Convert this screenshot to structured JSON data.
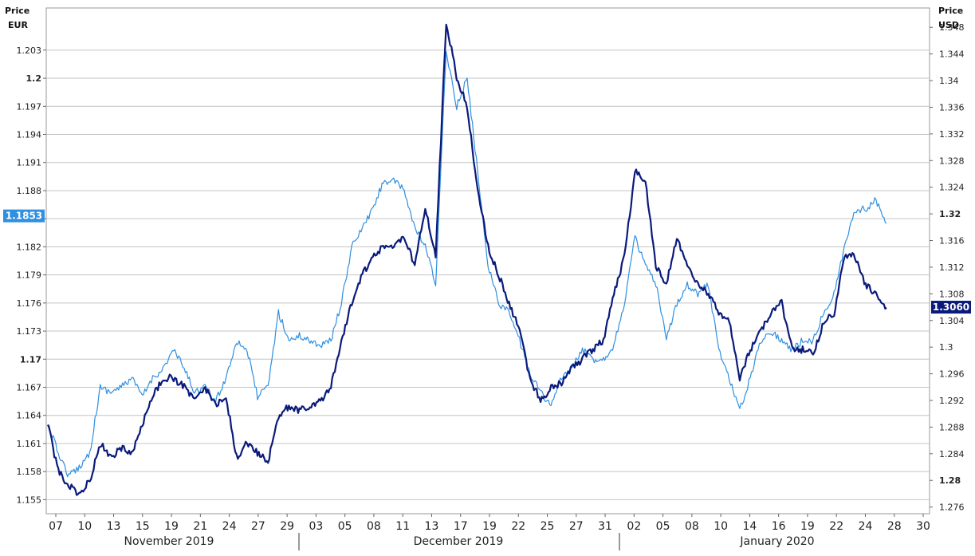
{
  "chart_data": {
    "type": "line",
    "left_axis": {
      "title_line1": "Price",
      "title_line2": "EUR",
      "ylim": [
        1.1535,
        1.2075
      ],
      "ticks": [
        "1.155",
        "1.158",
        "1.161",
        "1.164",
        "1.167",
        "1.17",
        "1.173",
        "1.176",
        "1.179",
        "1.182",
        "1.185",
        "1.188",
        "1.191",
        "1.194",
        "1.197",
        "1.2",
        "1.203"
      ],
      "bold_ticks": [
        "1.17",
        "1.2"
      ],
      "current_label": "1.1853"
    },
    "right_axis": {
      "title_line1": "Price",
      "title_line2": "USD",
      "ylim": [
        1.275,
        1.3509
      ],
      "ticks": [
        "1.276",
        "1.28",
        "1.284",
        "1.288",
        "1.292",
        "1.296",
        "1.3",
        "1.304",
        "1.308",
        "1.312",
        "1.316",
        "1.32",
        "1.324",
        "1.328",
        "1.332",
        "1.336",
        "1.34",
        "1.344",
        "1.348"
      ],
      "bold_ticks": [
        "1.28",
        "1.32"
      ],
      "current_label": "1.3060"
    },
    "x_ticks": [
      "07",
      "10",
      "13",
      "15",
      "19",
      "21",
      "24",
      "27",
      "29",
      "03",
      "05",
      "08",
      "11",
      "13",
      "17",
      "19",
      "22",
      "25",
      "27",
      "31",
      "02",
      "05",
      "08",
      "10",
      "14",
      "16",
      "19",
      "22",
      "24",
      "28",
      "30"
    ],
    "months": [
      "November 2019",
      "December 2019",
      "January 2020"
    ],
    "grid": true,
    "series": [
      {
        "axis": "left",
        "color": "#2f8fe0",
        "points": [
          [
            0,
            1.163
          ],
          [
            1,
            1.16
          ],
          [
            2,
            1.1575
          ],
          [
            3,
            1.1585
          ],
          [
            4,
            1.16
          ],
          [
            5,
            1.167
          ],
          [
            6,
            1.1665
          ],
          [
            7,
            1.167
          ],
          [
            8,
            1.168
          ],
          [
            9,
            1.166
          ],
          [
            10,
            1.168
          ],
          [
            11,
            1.169
          ],
          [
            12,
            1.171
          ],
          [
            13,
            1.169
          ],
          [
            14,
            1.1665
          ],
          [
            15,
            1.167
          ],
          [
            16,
            1.1655
          ],
          [
            17,
            1.168
          ],
          [
            18,
            1.172
          ],
          [
            19,
            1.171
          ],
          [
            20,
            1.166
          ],
          [
            21,
            1.167
          ],
          [
            22,
            1.175
          ],
          [
            23,
            1.172
          ],
          [
            24,
            1.1725
          ],
          [
            25,
            1.172
          ],
          [
            26,
            1.1715
          ],
          [
            27,
            1.172
          ],
          [
            28,
            1.176
          ],
          [
            29,
            1.182
          ],
          [
            30,
            1.184
          ],
          [
            31,
            1.186
          ],
          [
            32,
            1.189
          ],
          [
            33,
            1.189
          ],
          [
            34,
            1.188
          ],
          [
            35,
            1.184
          ],
          [
            36,
            1.182
          ],
          [
            37,
            1.178
          ],
          [
            38,
            1.203
          ],
          [
            39,
            1.197
          ],
          [
            40,
            1.2
          ],
          [
            41,
            1.19
          ],
          [
            42,
            1.18
          ],
          [
            43,
            1.176
          ],
          [
            44,
            1.175
          ],
          [
            45,
            1.172
          ],
          [
            46,
            1.1685
          ],
          [
            47,
            1.1665
          ],
          [
            48,
            1.165
          ],
          [
            49,
            1.168
          ],
          [
            50,
            1.169
          ],
          [
            51,
            1.171
          ],
          [
            52,
            1.17
          ],
          [
            53,
            1.17
          ],
          [
            54,
            1.1715
          ],
          [
            55,
            1.176
          ],
          [
            56,
            1.183
          ],
          [
            57,
            1.18
          ],
          [
            58,
            1.178
          ],
          [
            59,
            1.172
          ],
          [
            60,
            1.176
          ],
          [
            61,
            1.178
          ],
          [
            62,
            1.177
          ],
          [
            63,
            1.178
          ],
          [
            64,
            1.171
          ],
          [
            65,
            1.168
          ],
          [
            66,
            1.1645
          ],
          [
            67,
            1.168
          ],
          [
            68,
            1.172
          ],
          [
            69,
            1.173
          ],
          [
            70,
            1.172
          ],
          [
            71,
            1.171
          ],
          [
            72,
            1.172
          ],
          [
            73,
            1.172
          ],
          [
            74,
            1.175
          ],
          [
            75,
            1.177
          ],
          [
            76,
            1.182
          ],
          [
            77,
            1.186
          ],
          [
            78,
            1.186
          ],
          [
            79,
            1.187
          ],
          [
            80,
            1.1845
          ]
        ]
      },
      {
        "axis": "left",
        "color": "#0a1a7a",
        "points": [
          [
            0,
            1.163
          ],
          [
            1,
            1.158
          ],
          [
            2,
            1.1565
          ],
          [
            3,
            1.1555
          ],
          [
            4,
            1.157
          ],
          [
            5,
            1.161
          ],
          [
            6,
            1.1595
          ],
          [
            7,
            1.1605
          ],
          [
            8,
            1.16
          ],
          [
            9,
            1.163
          ],
          [
            10,
            1.166
          ],
          [
            11,
            1.168
          ],
          [
            12,
            1.168
          ],
          [
            13,
            1.167
          ],
          [
            14,
            1.1655
          ],
          [
            15,
            1.167
          ],
          [
            16,
            1.165
          ],
          [
            17,
            1.166
          ],
          [
            18,
            1.1595
          ],
          [
            19,
            1.161
          ],
          [
            20,
            1.16
          ],
          [
            21,
            1.159
          ],
          [
            22,
            1.164
          ],
          [
            23,
            1.165
          ],
          [
            24,
            1.1645
          ],
          [
            25,
            1.165
          ],
          [
            26,
            1.1655
          ],
          [
            27,
            1.167
          ],
          [
            28,
            1.172
          ],
          [
            29,
            1.176
          ],
          [
            30,
            1.179
          ],
          [
            31,
            1.181
          ],
          [
            32,
            1.182
          ],
          [
            33,
            1.182
          ],
          [
            34,
            1.183
          ],
          [
            35,
            1.18
          ],
          [
            36,
            1.186
          ],
          [
            37,
            1.181
          ],
          [
            38,
            1.206
          ],
          [
            39,
            1.2
          ],
          [
            40,
            1.197
          ],
          [
            41,
            1.188
          ],
          [
            42,
            1.182
          ],
          [
            43,
            1.179
          ],
          [
            44,
            1.176
          ],
          [
            45,
            1.173
          ],
          [
            46,
            1.168
          ],
          [
            47,
            1.1655
          ],
          [
            48,
            1.167
          ],
          [
            49,
            1.1675
          ],
          [
            50,
            1.169
          ],
          [
            51,
            1.17
          ],
          [
            52,
            1.171
          ],
          [
            53,
            1.172
          ],
          [
            54,
            1.177
          ],
          [
            55,
            1.181
          ],
          [
            56,
            1.19
          ],
          [
            57,
            1.189
          ],
          [
            58,
            1.18
          ],
          [
            59,
            1.178
          ],
          [
            60,
            1.183
          ],
          [
            61,
            1.18
          ],
          [
            62,
            1.178
          ],
          [
            63,
            1.177
          ],
          [
            64,
            1.175
          ],
          [
            65,
            1.174
          ],
          [
            66,
            1.168
          ],
          [
            67,
            1.171
          ],
          [
            68,
            1.173
          ],
          [
            69,
            1.175
          ],
          [
            70,
            1.176
          ],
          [
            71,
            1.171
          ],
          [
            72,
            1.171
          ],
          [
            73,
            1.1705
          ],
          [
            74,
            1.174
          ],
          [
            75,
            1.175
          ],
          [
            76,
            1.181
          ],
          [
            77,
            1.181
          ],
          [
            78,
            1.178
          ],
          [
            79,
            1.177
          ],
          [
            80,
            1.1755
          ]
        ]
      }
    ]
  }
}
